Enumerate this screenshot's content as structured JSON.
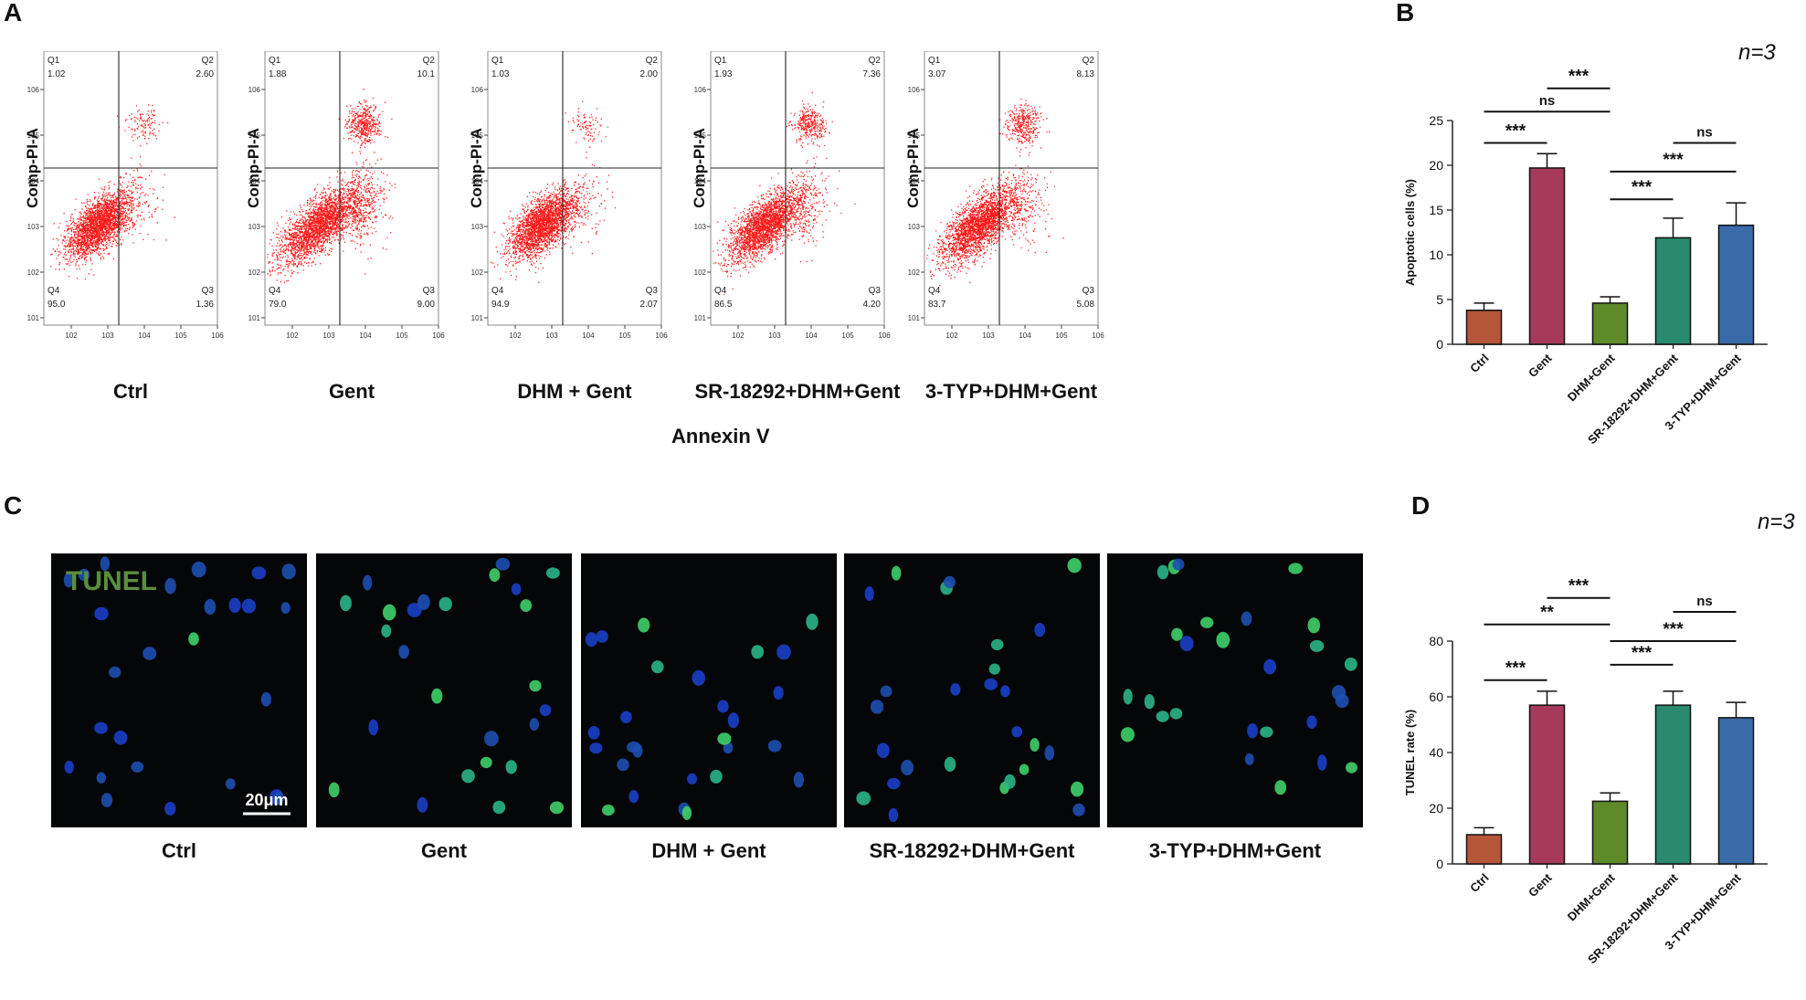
{
  "letters": {
    "a": "A",
    "b": "B",
    "c": "C",
    "d": "D"
  },
  "flow": {
    "x_label": "Annexin V",
    "y_label": "Comp-PI-A",
    "quadrant_names": [
      "Q1",
      "Q2",
      "Q3",
      "Q4"
    ],
    "x_ticks": [
      "10^2",
      "10^3",
      "10^4",
      "10^5",
      "10^6"
    ],
    "y_ticks": [
      "10^1",
      "10^2",
      "10^3",
      "10^4",
      "10^5",
      "10^6"
    ],
    "panels": [
      {
        "condition": "Ctrl",
        "q1": "1.02",
        "q2": "2.60",
        "q3": "1.36",
        "q4": "95.0"
      },
      {
        "condition": "Gent",
        "q1": "1.88",
        "q2": "10.1",
        "q3": "9.00",
        "q4": "79.0"
      },
      {
        "condition": "DHM + Gent",
        "q1": "1.03",
        "q2": "2.00",
        "q3": "2.07",
        "q4": "94.9"
      },
      {
        "condition": "SR-18292+DHM+Gent",
        "q1": "1.93",
        "q2": "7.36",
        "q3": "4.20",
        "q4": "86.5"
      },
      {
        "condition": "3-TYP+DHM+Gent",
        "q1": "3.07",
        "q2": "8.13",
        "q3": "5.08",
        "q4": "83.7"
      }
    ],
    "scatter_color": "#ff1a1a"
  },
  "tunel": {
    "stain_label": "TUNEL",
    "scale_bar": "20μm",
    "conditions": [
      "Ctrl",
      "Gent",
      "DHM + Gent",
      "SR-18292+DHM+Gent",
      "3-TYP+DHM+Gent"
    ],
    "stain_color": "#5a8f3c"
  },
  "chart_data": [
    {
      "type": "bar",
      "panel": "B",
      "n_label": "n=3",
      "ylabel": "Apoptotic cells (%)",
      "ylim": [
        0,
        25
      ],
      "yticks": [
        0,
        5,
        10,
        15,
        20,
        25
      ],
      "categories": [
        "Ctrl",
        "Gent",
        "DHM+Gent",
        "SR-18292+DHM+Gent",
        "3-TYP+DHM+Gent"
      ],
      "values": [
        3.8,
        19.7,
        4.6,
        11.9,
        13.3
      ],
      "errors": [
        0.8,
        1.6,
        0.7,
        2.2,
        2.5
      ],
      "colors": [
        "#b5553a",
        "#a63a5c",
        "#5e8a2a",
        "#2a8a6e",
        "#3a6aa8"
      ],
      "significance": [
        {
          "from": 0,
          "to": 1,
          "label": "***",
          "y": 22.5
        },
        {
          "from": 2,
          "to": 3,
          "label": "***",
          "y": 16.2
        },
        {
          "from": 2,
          "to": 4,
          "label": "***",
          "y": 19.3
        },
        {
          "from": 3,
          "to": 4,
          "label": "ns",
          "y": 22.5
        },
        {
          "from": 0,
          "to": 2,
          "label": "ns",
          "y": 26.0
        },
        {
          "from": 1,
          "to": 2,
          "label": "***",
          "y": 28.6
        }
      ]
    },
    {
      "type": "bar",
      "panel": "D",
      "n_label": "n=3",
      "ylabel": "TUNEL rate (%)",
      "ylim": [
        0,
        80
      ],
      "yticks": [
        0,
        20,
        40,
        60,
        80
      ],
      "categories": [
        "Ctrl",
        "Gent",
        "DHM+Gent",
        "SR-18292+DHM+Gent",
        "3-TYP+DHM+Gent"
      ],
      "values": [
        10.5,
        57.0,
        22.5,
        57.0,
        52.5
      ],
      "errors": [
        2.5,
        5.0,
        3.0,
        5.0,
        5.5
      ],
      "colors": [
        "#b5553a",
        "#a63a5c",
        "#5e8a2a",
        "#2a8a6e",
        "#3a6aa8"
      ],
      "significance": [
        {
          "from": 0,
          "to": 1,
          "label": "***",
          "y": 66.0
        },
        {
          "from": 2,
          "to": 3,
          "label": "***",
          "y": 71.5
        },
        {
          "from": 2,
          "to": 4,
          "label": "***",
          "y": 80.0
        },
        {
          "from": 3,
          "to": 4,
          "label": "ns",
          "y": 90.5
        },
        {
          "from": 0,
          "to": 2,
          "label": "**",
          "y": 86.0
        },
        {
          "from": 1,
          "to": 2,
          "label": "***",
          "y": 95.5
        }
      ]
    }
  ]
}
